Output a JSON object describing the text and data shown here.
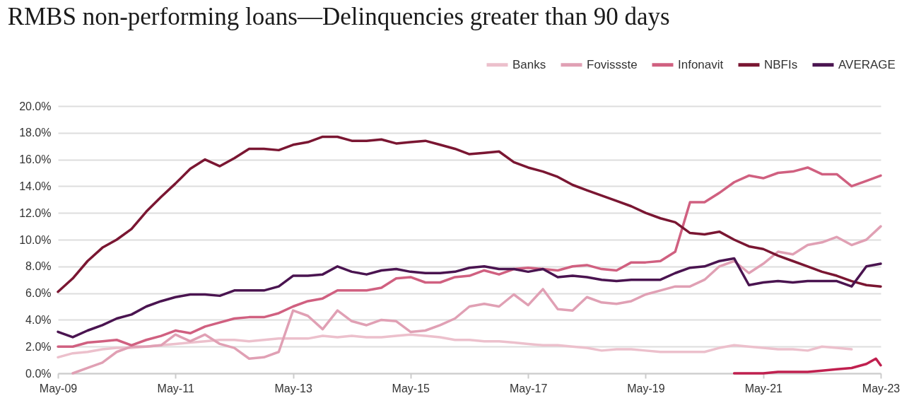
{
  "chart_data": {
    "type": "line",
    "title": "RMBS non-performing loans—Delinquencies greater than 90 days",
    "x": [
      "2009-05",
      "2009-08",
      "2009-11",
      "2010-02",
      "2010-05",
      "2010-08",
      "2010-11",
      "2011-02",
      "2011-05",
      "2011-08",
      "2011-11",
      "2012-02",
      "2012-05",
      "2012-08",
      "2012-11",
      "2013-02",
      "2013-05",
      "2013-08",
      "2013-11",
      "2014-02",
      "2014-05",
      "2014-08",
      "2014-11",
      "2015-02",
      "2015-05",
      "2015-08",
      "2015-11",
      "2016-02",
      "2016-05",
      "2016-08",
      "2016-11",
      "2017-02",
      "2017-05",
      "2017-08",
      "2017-11",
      "2018-02",
      "2018-05",
      "2018-08",
      "2018-11",
      "2019-02",
      "2019-05",
      "2019-08",
      "2019-11",
      "2020-02",
      "2020-05",
      "2020-08",
      "2020-11",
      "2021-02",
      "2021-05",
      "2021-08",
      "2021-11",
      "2022-02",
      "2022-05",
      "2022-08",
      "2022-11",
      "2023-02",
      "2023-05"
    ],
    "series": [
      {
        "name": "Banks",
        "color": "#ecc0cc",
        "values": [
          1.2,
          1.5,
          1.6,
          1.8,
          1.9,
          1.9,
          2.0,
          2.1,
          2.2,
          2.3,
          2.4,
          2.5,
          2.5,
          2.4,
          2.5,
          2.6,
          2.6,
          2.6,
          2.8,
          2.7,
          2.8,
          2.7,
          2.7,
          2.8,
          2.9,
          2.8,
          2.7,
          2.5,
          2.5,
          2.4,
          2.4,
          2.3,
          2.2,
          2.1,
          2.1,
          2.0,
          1.9,
          1.7,
          1.8,
          1.8,
          1.7,
          1.6,
          1.6,
          1.6,
          1.6,
          1.9,
          2.1,
          2.0,
          1.9,
          1.8,
          1.8,
          1.7,
          2.0,
          1.9,
          1.8,
          null,
          null
        ]
      },
      {
        "name": "Fovissste",
        "color": "#e0a0b4",
        "values": [
          null,
          0.0,
          0.4,
          0.8,
          1.6,
          2.0,
          2.0,
          2.1,
          2.9,
          2.4,
          2.9,
          2.2,
          1.9,
          1.1,
          1.2,
          1.6,
          4.7,
          4.3,
          3.3,
          4.7,
          3.9,
          3.6,
          4.0,
          3.9,
          3.1,
          3.2,
          3.6,
          4.1,
          5.0,
          5.2,
          5.0,
          5.9,
          5.1,
          6.3,
          4.8,
          4.7,
          5.7,
          5.3,
          5.2,
          5.4,
          5.9,
          6.2,
          6.5,
          6.5,
          7.0,
          8.0,
          8.4,
          7.5,
          8.2,
          9.1,
          8.9,
          9.6,
          9.8,
          10.2,
          9.6,
          10.0,
          11.0
        ]
      },
      {
        "name": "Infonavit",
        "color": "#d06080",
        "values": [
          2.0,
          2.0,
          2.3,
          2.4,
          2.5,
          2.1,
          2.5,
          2.8,
          3.2,
          3.0,
          3.5,
          3.8,
          4.1,
          4.2,
          4.2,
          4.5,
          5.0,
          5.4,
          5.6,
          6.2,
          6.2,
          6.2,
          6.4,
          7.1,
          7.2,
          6.8,
          6.8,
          7.2,
          7.3,
          7.7,
          7.4,
          7.8,
          7.9,
          7.8,
          7.7,
          8.0,
          8.1,
          7.8,
          7.7,
          8.3,
          8.3,
          8.4,
          9.1,
          12.8,
          12.8,
          13.5,
          14.3,
          14.8,
          14.6,
          15.0,
          15.1,
          15.4,
          14.9,
          14.9,
          14.0,
          14.4,
          14.8
        ]
      },
      {
        "color": "#c0204f",
        "x": [
          "2020-11",
          "2021-02",
          "2021-05",
          "2021-08",
          "2021-11",
          "2022-02",
          "2022-05",
          "2022-08",
          "2022-11",
          "2023-02",
          "2023-04",
          "2023-05"
        ],
        "values": [
          0.0,
          0.0,
          0.0,
          0.1,
          0.1,
          0.1,
          0.2,
          0.3,
          0.4,
          0.7,
          1.1,
          0.6
        ]
      },
      {
        "name": "NBFIs",
        "color": "#7a1632",
        "values": [
          6.1,
          7.1,
          8.4,
          9.4,
          10.0,
          10.8,
          12.1,
          13.2,
          14.2,
          15.3,
          16.0,
          15.5,
          16.1,
          16.8,
          16.8,
          16.7,
          17.1,
          17.3,
          17.7,
          17.7,
          17.4,
          17.4,
          17.5,
          17.2,
          17.3,
          17.4,
          17.1,
          16.8,
          16.4,
          16.5,
          16.6,
          15.8,
          15.4,
          15.1,
          14.7,
          14.1,
          13.7,
          13.3,
          12.9,
          12.5,
          12.0,
          11.6,
          11.3,
          10.5,
          10.4,
          10.6,
          10.0,
          9.5,
          9.3,
          8.8,
          8.4,
          8.0,
          7.6,
          7.3,
          6.9,
          6.6,
          6.5
        ]
      },
      {
        "name": "AVERAGE",
        "color": "#4a1450",
        "values": [
          3.1,
          2.7,
          3.2,
          3.6,
          4.1,
          4.4,
          5.0,
          5.4,
          5.7,
          5.9,
          5.9,
          5.8,
          6.2,
          6.2,
          6.2,
          6.5,
          7.3,
          7.3,
          7.4,
          8.0,
          7.6,
          7.4,
          7.7,
          7.8,
          7.6,
          7.5,
          7.5,
          7.6,
          7.9,
          8.0,
          7.8,
          7.8,
          7.6,
          7.8,
          7.2,
          7.3,
          7.2,
          7.0,
          6.9,
          7.0,
          7.0,
          7.0,
          7.5,
          7.9,
          8.0,
          8.4,
          8.6,
          6.6,
          6.8,
          6.9,
          6.8,
          6.9,
          6.9,
          6.9,
          6.5,
          8.0,
          8.2
        ]
      }
    ],
    "xlim": [
      "2009-05",
      "2023-05"
    ],
    "xticks": [
      {
        "value": "2009-05",
        "label": "May-09"
      },
      {
        "value": "2011-05",
        "label": "May-11"
      },
      {
        "value": "2013-05",
        "label": "May-13"
      },
      {
        "value": "2015-05",
        "label": "May-15"
      },
      {
        "value": "2017-05",
        "label": "May-17"
      },
      {
        "value": "2019-05",
        "label": "May-19"
      },
      {
        "value": "2021-05",
        "label": "May-21"
      },
      {
        "value": "2023-05",
        "label": "May-23"
      }
    ],
    "ylim": [
      0,
      20
    ],
    "yticks": [
      {
        "value": 0,
        "label": "0.0%"
      },
      {
        "value": 2,
        "label": "2.0%"
      },
      {
        "value": 4,
        "label": "4.0%"
      },
      {
        "value": 6,
        "label": "6.0%"
      },
      {
        "value": 8,
        "label": "8.0%"
      },
      {
        "value": 10,
        "label": "10.0%"
      },
      {
        "value": 12,
        "label": "12.0%"
      },
      {
        "value": 14,
        "label": "14.0%"
      },
      {
        "value": 16,
        "label": "16.0%"
      },
      {
        "value": 18,
        "label": "18.0%"
      },
      {
        "value": 20,
        "label": "20.0%"
      }
    ],
    "grid": "y",
    "legend": "top right",
    "marker": "none",
    "line_style": "solid"
  }
}
